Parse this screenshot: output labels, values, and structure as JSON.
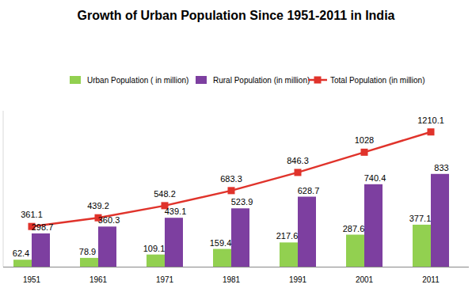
{
  "chart_data": {
    "type": "bar",
    "title": "Growth of Urban Population Since 1951-2011 in India",
    "categories": [
      "1951",
      "1961",
      "1971",
      "1981",
      "1991",
      "2001",
      "2011"
    ],
    "series": [
      {
        "name": "Urban Population ( in million)",
        "color": "#92d050",
        "values": [
          62.4,
          78.9,
          109.1,
          159.4,
          217.6,
          287.6,
          377.1
        ]
      },
      {
        "name": "Rural Population (in million)",
        "color": "#7d3fa0",
        "values": [
          298.7,
          360.3,
          439.1,
          523.9,
          628.7,
          740.4,
          833
        ]
      },
      {
        "name": "Total Population (in million)",
        "type": "line",
        "color": "#e0332b",
        "marker": "square",
        "values": [
          361.1,
          439.2,
          548.2,
          683.3,
          846.3,
          1028,
          1210.1
        ]
      }
    ],
    "ylim": [
      0,
      1400
    ],
    "yticks": [],
    "tick_labels": "x",
    "data_labels": true,
    "legend": "top"
  }
}
